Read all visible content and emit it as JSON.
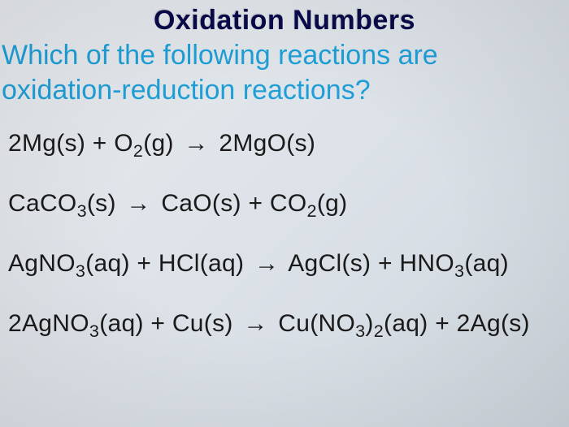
{
  "title": {
    "text": "Oxidation Numbers",
    "color": "#0a0a4a"
  },
  "question": {
    "line1": "Which of the following reactions are",
    "line2": "oxidation-reduction reactions?",
    "color": "#1e9fd8"
  },
  "arrow_glyph": "→",
  "reactions": [
    {
      "tokens": [
        {
          "t": "txt",
          "v": "2Mg(s)  +  O"
        },
        {
          "t": "sub",
          "v": "2"
        },
        {
          "t": "txt",
          "v": "(g) "
        },
        {
          "t": "arrow"
        },
        {
          "t": "txt",
          "v": " 2MgO(s)"
        }
      ]
    },
    {
      "tokens": [
        {
          "t": "txt",
          "v": "CaCO"
        },
        {
          "t": "sub",
          "v": "3"
        },
        {
          "t": "txt",
          "v": "(s) "
        },
        {
          "t": "arrow"
        },
        {
          "t": "txt",
          "v": " CaO(s)  +  CO"
        },
        {
          "t": "sub",
          "v": "2"
        },
        {
          "t": "txt",
          "v": "(g)"
        }
      ]
    },
    {
      "tokens": [
        {
          "t": "txt",
          "v": "AgNO"
        },
        {
          "t": "sub",
          "v": "3"
        },
        {
          "t": "txt",
          "v": "(aq)  +  HCl(aq) "
        },
        {
          "t": "arrow"
        },
        {
          "t": "txt",
          "v": " AgCl(s)  + HNO"
        },
        {
          "t": "sub",
          "v": "3"
        },
        {
          "t": "txt",
          "v": "(aq)"
        }
      ]
    },
    {
      "tokens": [
        {
          "t": "txt",
          "v": "2AgNO"
        },
        {
          "t": "sub",
          "v": "3"
        },
        {
          "t": "txt",
          "v": "(aq)  + Cu(s) "
        },
        {
          "t": "arrow"
        },
        {
          "t": "txt",
          "v": " Cu(NO"
        },
        {
          "t": "sub",
          "v": "3"
        },
        {
          "t": "txt",
          "v": ")"
        },
        {
          "t": "sub",
          "v": "2"
        },
        {
          "t": "txt",
          "v": "(aq)  +  2Ag(s)"
        }
      ]
    }
  ]
}
